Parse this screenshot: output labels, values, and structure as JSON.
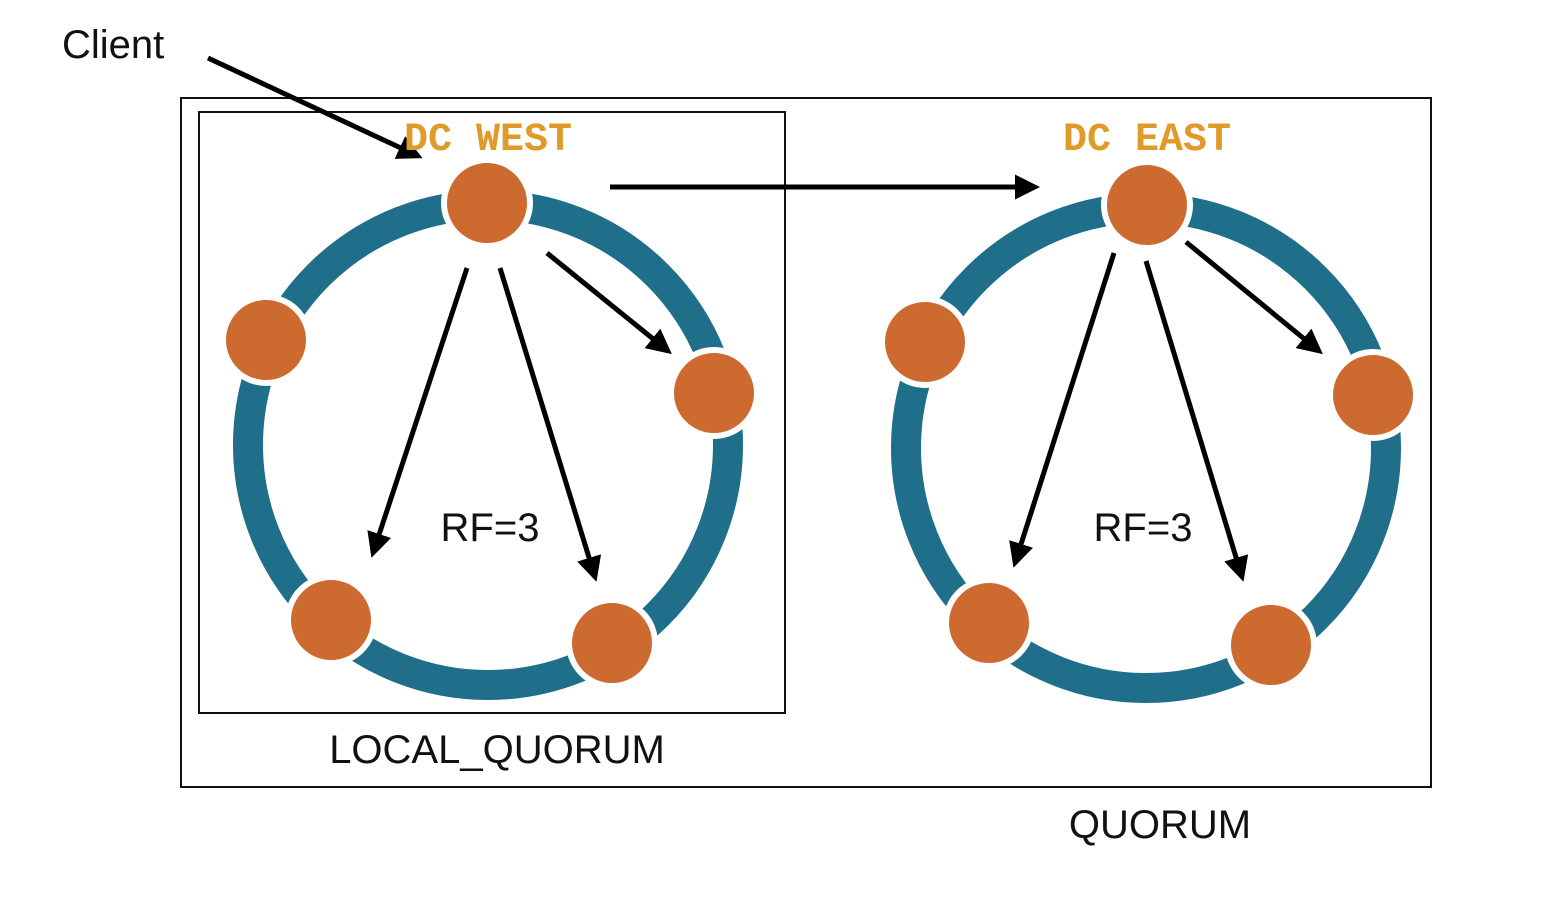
{
  "labels": {
    "client": "Client",
    "local_quorum": "LOCAL_QUORUM",
    "quorum": "QUORUM"
  },
  "datacenters": [
    {
      "name": "DC WEST",
      "rf_label": "RF=3"
    },
    {
      "name": "DC EAST",
      "rf_label": "RF=3"
    }
  ],
  "colors": {
    "ring": "#1f6f8b",
    "node": "#cc6a2f",
    "dc_label": "#e09a2a",
    "arrow": "#000000",
    "box_border": "#111111"
  }
}
